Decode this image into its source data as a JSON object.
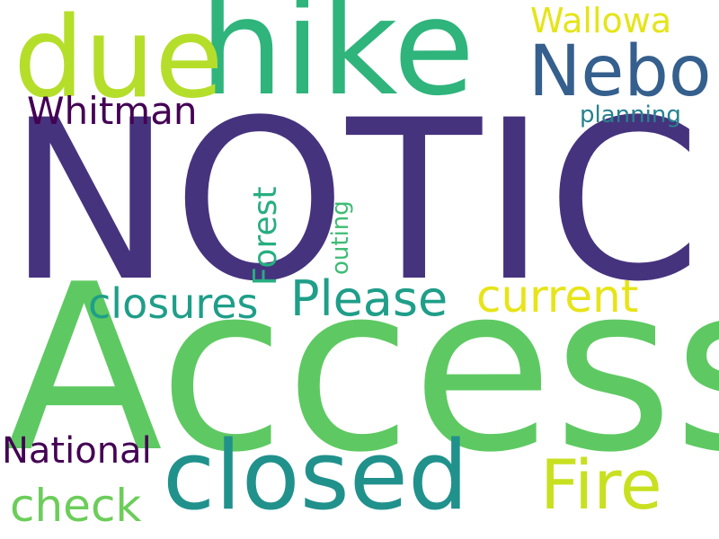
{
  "words": {
    "notice": {
      "text": "NOTICE",
      "color": "#46337e"
    },
    "access": {
      "text": "Access",
      "color": "#5ec962"
    },
    "hike": {
      "text": "hike",
      "color": "#2fb47c"
    },
    "due": {
      "text": "due",
      "color": "#b5de2b"
    },
    "closed": {
      "text": "closed",
      "color": "#21918c"
    },
    "nebo": {
      "text": "Nebo",
      "color": "#355f8d"
    },
    "fire": {
      "text": "Fire",
      "color": "#c8e020"
    },
    "please": {
      "text": "Please",
      "color": "#1f9e89"
    },
    "current": {
      "text": "current",
      "color": "#e7e419"
    },
    "closures": {
      "text": "closures",
      "color": "#1f9e89"
    },
    "check": {
      "text": "check",
      "color": "#6ccd5a"
    },
    "whitman": {
      "text": "Whitman",
      "color": "#440154"
    },
    "national": {
      "text": "National",
      "color": "#440154"
    },
    "wallowa": {
      "text": "Wallowa",
      "color": "#e5e419"
    },
    "planning": {
      "text": "planning",
      "color": "#26828e"
    },
    "forest": {
      "text": "Forest",
      "color": "#28ae80"
    },
    "outing": {
      "text": "outing",
      "color": "#3dbc74"
    }
  }
}
